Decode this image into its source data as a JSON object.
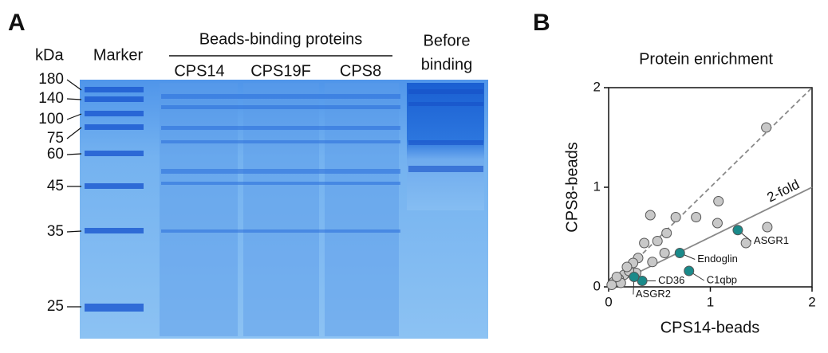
{
  "panel_a": {
    "letter": "A",
    "unit": "kDa",
    "marker_label": "Marker",
    "group_label": "Beads-binding proteins",
    "lanes": [
      "CPS14",
      "CPS19F",
      "CPS8"
    ],
    "before_label": [
      "Before",
      "binding"
    ],
    "marker_sizes": [
      "180",
      "140",
      "100",
      "75",
      "60",
      "45",
      "35",
      "25"
    ]
  },
  "panel_b": {
    "letter": "B"
  },
  "chart_data": {
    "type": "scatter",
    "title": "Protein enrichment",
    "x_label": "CPS14-beads",
    "y_label": "CPS8-beads",
    "xlim": [
      0,
      2
    ],
    "ylim": [
      0,
      2
    ],
    "xticks": [
      0,
      1,
      2
    ],
    "yticks": [
      0,
      1,
      2
    ],
    "reference_lines": [
      {
        "slope": 1,
        "style": "dashed",
        "color": "#888888"
      },
      {
        "slope": 0.5,
        "style": "solid",
        "color": "#888888",
        "label": "2-fold"
      }
    ],
    "series": [
      {
        "color": "#c8c8c8",
        "x": [
          1.55,
          0.41,
          0.66,
          0.86,
          1.07,
          1.08,
          0.57,
          0.48,
          0.35,
          0.55,
          0.43,
          0.29,
          0.24,
          0.27,
          0.15,
          0.1,
          0.05,
          0.03,
          0.2,
          1.35,
          1.56,
          0.12,
          0.08,
          0.18
        ],
        "y": [
          1.6,
          0.72,
          0.7,
          0.7,
          0.64,
          0.86,
          0.54,
          0.46,
          0.44,
          0.34,
          0.25,
          0.29,
          0.24,
          0.14,
          0.12,
          0.08,
          0.05,
          0.02,
          0.16,
          0.44,
          0.6,
          0.04,
          0.1,
          0.2
        ]
      },
      {
        "color": "#1a8a8a",
        "labels": [
          "ASGR1",
          "Endoglin",
          "C1qbp",
          "CD36",
          "ASGR2"
        ],
        "x": [
          1.27,
          0.7,
          0.79,
          0.33,
          0.25
        ],
        "y": [
          0.57,
          0.34,
          0.16,
          0.06,
          0.1
        ]
      }
    ]
  }
}
